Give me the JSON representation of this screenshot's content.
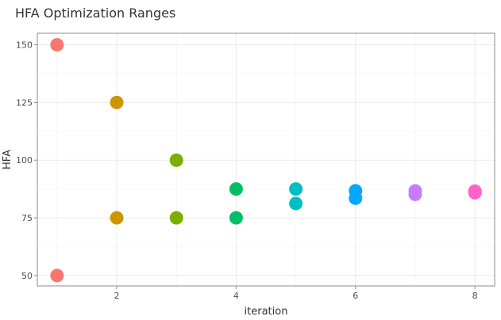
{
  "chart_data": {
    "type": "scatter",
    "title": "HFA Optimization Ranges",
    "xlabel": "iteration",
    "ylabel": "HFA",
    "xlim": [
      0.67,
      8.33
    ],
    "ylim": [
      45.5,
      155
    ],
    "x_ticks": [
      2,
      4,
      6,
      8
    ],
    "y_ticks": [
      50,
      75,
      100,
      125,
      150
    ],
    "grid": true,
    "legend": "none",
    "points": [
      {
        "x": 1,
        "y": 150,
        "color": "#F8766D"
      },
      {
        "x": 1,
        "y": 50,
        "color": "#F8766D"
      },
      {
        "x": 2,
        "y": 125,
        "color": "#CD9600"
      },
      {
        "x": 2,
        "y": 75,
        "color": "#CD9600"
      },
      {
        "x": 3,
        "y": 100,
        "color": "#7CAE00"
      },
      {
        "x": 3,
        "y": 75,
        "color": "#7CAE00"
      },
      {
        "x": 4,
        "y": 87.5,
        "color": "#00BE67"
      },
      {
        "x": 4,
        "y": 75,
        "color": "#00BE67"
      },
      {
        "x": 5,
        "y": 87.5,
        "color": "#00BFC4"
      },
      {
        "x": 5,
        "y": 81.25,
        "color": "#00BFC4"
      },
      {
        "x": 6,
        "y": 86.75,
        "color": "#00A9FF"
      },
      {
        "x": 6,
        "y": 83.5,
        "color": "#00A9FF"
      },
      {
        "x": 7,
        "y": 86.7,
        "color": "#C77CFF"
      },
      {
        "x": 7,
        "y": 85.2,
        "color": "#C77CFF"
      },
      {
        "x": 8,
        "y": 86.6,
        "color": "#FF61CC"
      },
      {
        "x": 8,
        "y": 85.9,
        "color": "#FF61CC"
      }
    ]
  }
}
